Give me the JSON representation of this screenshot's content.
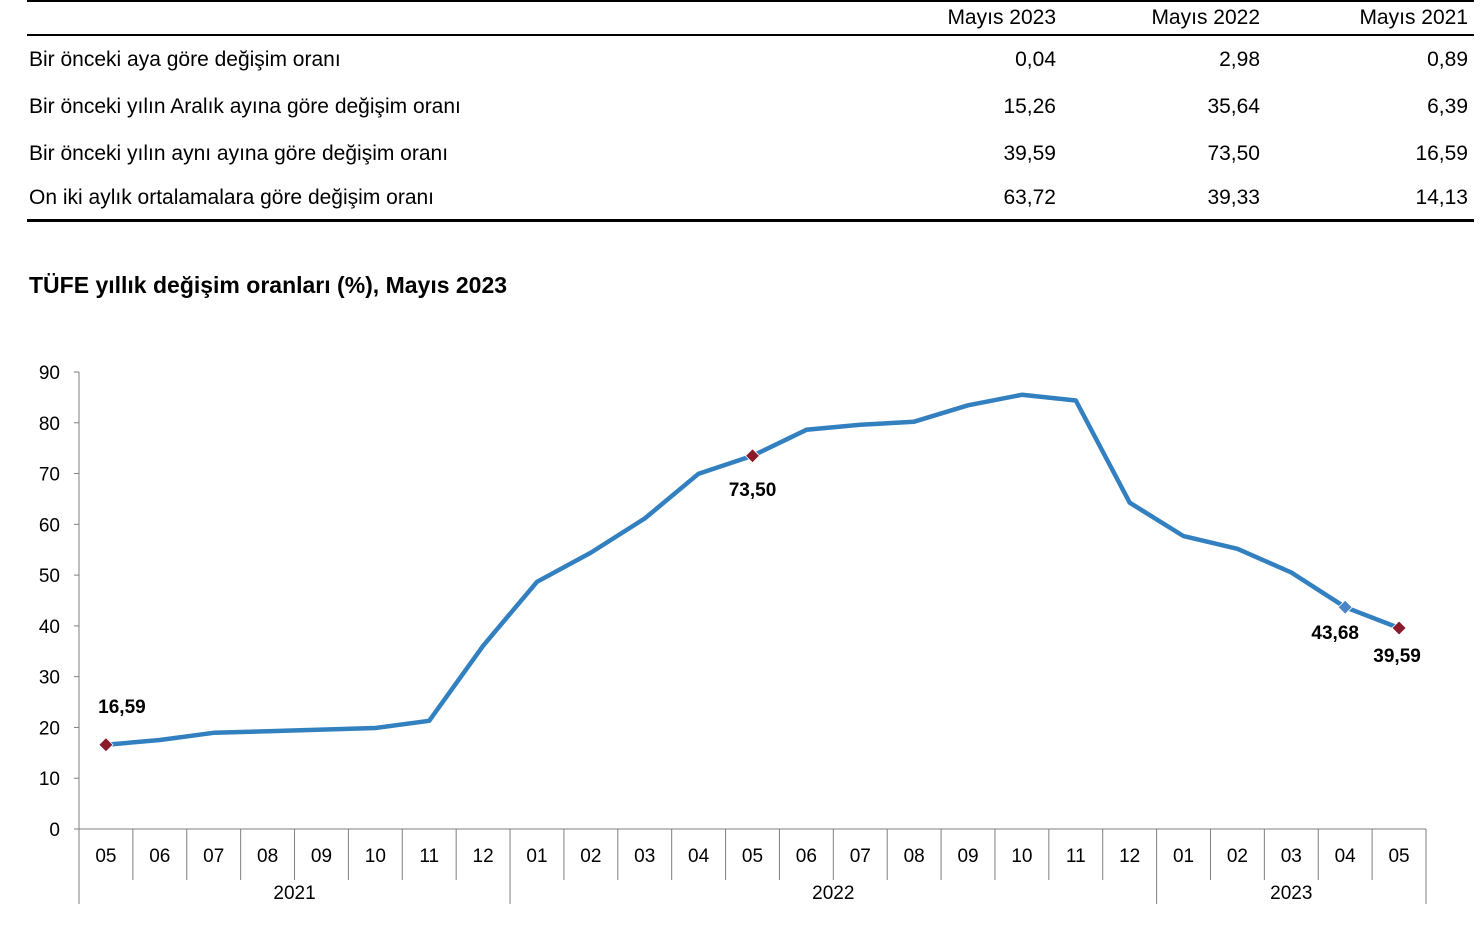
{
  "table": {
    "headers": [
      "",
      "Mayıs 2023",
      "Mayıs 2022",
      "Mayıs 2021"
    ],
    "rows": [
      {
        "label": "Bir önceki aya göre değişim oranı",
        "values": [
          "0,04",
          "2,98",
          "0,89"
        ]
      },
      {
        "label": "Bir önceki yılın Aralık ayına göre değişim oranı",
        "values": [
          "15,26",
          "35,64",
          "6,39"
        ]
      },
      {
        "label": "Bir önceki yılın aynı ayına göre değişim oranı",
        "values": [
          "39,59",
          "73,50",
          "16,59"
        ]
      },
      {
        "label": "On iki aylık ortalamalara göre değişim oranı",
        "values": [
          "63,72",
          "39,33",
          "14,13"
        ]
      }
    ]
  },
  "chart_data": {
    "type": "line",
    "title": "TÜFE yıllık değişim oranları (%), Mayıs 2023",
    "xlabel": "",
    "ylabel": "",
    "ylim": [
      0,
      90
    ],
    "yticks": [
      "0",
      "10",
      "20",
      "30",
      "40",
      "50",
      "60",
      "70",
      "80",
      "90"
    ],
    "categories": [
      "05",
      "06",
      "07",
      "08",
      "09",
      "10",
      "11",
      "12",
      "01",
      "02",
      "03",
      "04",
      "05",
      "06",
      "07",
      "08",
      "09",
      "10",
      "11",
      "12",
      "01",
      "02",
      "03",
      "04",
      "05"
    ],
    "year_groups": [
      {
        "label": "2021",
        "count": 8
      },
      {
        "label": "2022",
        "count": 12
      },
      {
        "label": "2023",
        "count": 5
      }
    ],
    "series": [
      {
        "values": [
          16.59,
          17.53,
          18.95,
          19.25,
          19.58,
          19.89,
          21.31,
          36.08,
          48.69,
          54.44,
          61.14,
          69.97,
          73.5,
          78.62,
          79.6,
          80.21,
          83.45,
          85.51,
          84.39,
          64.27,
          57.68,
          55.18,
          50.51,
          43.68,
          39.59
        ],
        "color": "#3380C0"
      }
    ],
    "annotations": [
      {
        "index": 0,
        "label": "16,59",
        "marker_color": "#8B1A2A"
      },
      {
        "index": 12,
        "label": "73,50",
        "marker_color": "#8B1A2A"
      },
      {
        "index": 23,
        "label": "43,68",
        "marker_color": "#4A86C8"
      },
      {
        "index": 24,
        "label": "39,59",
        "marker_color": "#8B1A2A"
      }
    ],
    "grid": false,
    "legend": "none"
  }
}
